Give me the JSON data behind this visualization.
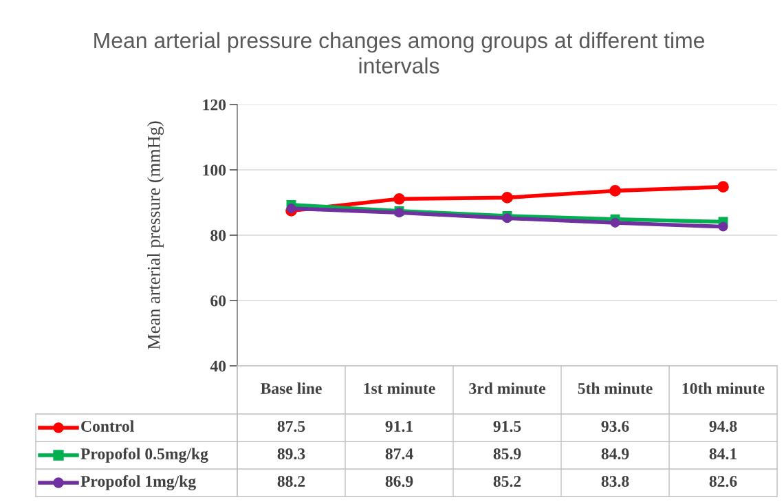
{
  "chart_data": {
    "type": "line",
    "title": "Mean arterial pressure changes among groups at different time intervals",
    "ylabel": "Mean arterial pressure (mmHg)",
    "categories": [
      "Base line",
      "1st minute",
      "3rd minute",
      "5th minute",
      "10th minute"
    ],
    "series": [
      {
        "name": "Control",
        "color": "#ff0000",
        "marker": "circle",
        "values": [
          87.5,
          91.1,
          91.5,
          93.6,
          94.8
        ]
      },
      {
        "name": "Propofol 0.5mg/kg",
        "color": "#00b050",
        "marker": "square",
        "values": [
          89.3,
          87.4,
          85.9,
          84.9,
          84.1
        ]
      },
      {
        "name": "Propofol 1mg/kg",
        "color": "#7030a0",
        "marker": "circle",
        "values": [
          88.2,
          86.9,
          85.2,
          83.8,
          82.6
        ]
      }
    ],
    "ylim": [
      40,
      120
    ],
    "yticks": [
      40,
      60,
      80,
      100,
      120
    ],
    "grid": "y",
    "data_labels": true,
    "legend": "bottom",
    "line_style": "solid"
  }
}
